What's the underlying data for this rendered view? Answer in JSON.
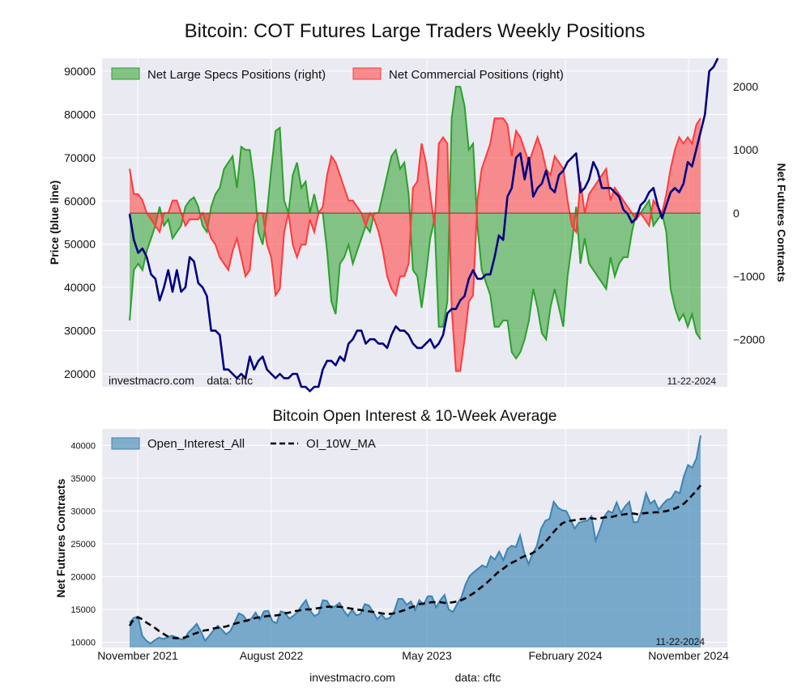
{
  "chart_data": [
    {
      "type": "area",
      "title": "Bitcoin: COT Futures Large Traders Weekly Positions",
      "ylabel_left": "Price (blue line)",
      "ylabel_right": "Net Futures Contracts",
      "ylim_left": [
        17000,
        93000
      ],
      "ylim_right": [
        -2750,
        2450
      ],
      "yticks_left": [
        "20000",
        "30000",
        "40000",
        "50000",
        "60000",
        "70000",
        "80000",
        "90000"
      ],
      "yticks_right": [
        "2000",
        "1000",
        "0",
        "−1000",
        "−2000"
      ],
      "legend": [
        "Net Large Specs Positions (right)",
        "Net Commercial Positions (right)"
      ],
      "legend_position": "top-left",
      "watermark": "investmacro.com    data: cftc",
      "date_label": "11-22-2024",
      "x_start": "2021-12-03",
      "x_end": "2024-11-22",
      "colors": {
        "specs": "#2ca02c",
        "commercial": "#ff3b3b",
        "price": "#000080"
      },
      "series": [
        {
          "name": "Net Large Specs Positions (right)",
          "values": [
            -1700,
            -900,
            -800,
            -900,
            -600,
            -400,
            -200,
            100,
            -200,
            -100,
            -400,
            -300,
            -200,
            100,
            200,
            250,
            100,
            -200,
            -300,
            100,
            300,
            400,
            700,
            800,
            900,
            400,
            1050,
            1000,
            1000,
            500,
            -300,
            -500,
            0,
            700,
            1300,
            1350,
            200,
            0,
            600,
            800,
            400,
            500,
            0,
            300,
            0,
            0,
            -600,
            -1400,
            -1600,
            -800,
            -700,
            -500,
            -800,
            -600,
            -400,
            -200,
            -300,
            0,
            0,
            300,
            600,
            900,
            1000,
            700,
            800,
            300,
            -900,
            -1000,
            -1500,
            -1000,
            -400,
            -100,
            -1800,
            -1800,
            -1400,
            1500,
            2000,
            2000,
            1700,
            1000,
            1100,
            -200,
            -900,
            -1100,
            -1300,
            -1800,
            -1800,
            -1700,
            -1700,
            -2200,
            -2300,
            -2200,
            -2000,
            -1700,
            -1200,
            -1500,
            -1900,
            -2000,
            -1500,
            -1200,
            -1500,
            -1800,
            -1000,
            -500,
            100,
            -800,
            -400,
            -800,
            -900,
            -1000,
            -1100,
            -1200,
            -700,
            -1000,
            -800,
            -700,
            -700,
            -300,
            0,
            0,
            100,
            200,
            -200,
            -100,
            0,
            -300,
            -1200,
            -1500,
            -1700,
            -1600,
            -1800,
            -1600,
            -1900,
            -2000
          ],
          "labels_hidden": true
        },
        {
          "name": "Net Commercial Positions (right)",
          "values": [
            700,
            300,
            300,
            200,
            0,
            -100,
            -200,
            -300,
            0,
            0,
            200,
            200,
            0,
            -200,
            -100,
            -100,
            -100,
            0,
            -200,
            -400,
            -500,
            -700,
            -800,
            -900,
            -600,
            -400,
            -700,
            -1000,
            -900,
            -200,
            0,
            0,
            -500,
            -700,
            -1300,
            -1200,
            -300,
            0,
            -500,
            -700,
            -500,
            -500,
            -100,
            -300,
            0,
            100,
            600,
            900,
            800,
            600,
            400,
            200,
            200,
            100,
            0,
            -200,
            0,
            -100,
            -300,
            -600,
            -1000,
            -1200,
            -1300,
            -1000,
            -1000,
            -800,
            400,
            500,
            1100,
            800,
            300,
            -200,
            1100,
            1200,
            1100,
            -1500,
            -2500,
            -2500,
            -2000,
            -1400,
            -1300,
            200,
            700,
            900,
            1100,
            1500,
            1500,
            1500,
            1400,
            900,
            1300,
            1200,
            1000,
            800,
            1000,
            1200,
            1000,
            700,
            600,
            900,
            800,
            700,
            200,
            -200,
            -300,
            500,
            0,
            300,
            400,
            500,
            600,
            700,
            200,
            400,
            300,
            200,
            100,
            0,
            -100,
            0,
            -100,
            -200,
            200,
            100,
            0,
            300,
            700,
            1000,
            1200,
            1100,
            1200,
            1100,
            1400,
            1500
          ],
          "labels_hidden": true
        },
        {
          "name": "price",
          "values": [
            57000,
            51000,
            48000,
            49000,
            47000,
            43000,
            42000,
            37000,
            40000,
            44000,
            39000,
            44000,
            39000,
            40000,
            47000,
            46000,
            41000,
            40000,
            38000,
            30000,
            30000,
            29000,
            21000,
            21000,
            20000,
            19000,
            20000,
            19000,
            24000,
            21000,
            23000,
            24000,
            21000,
            20000,
            19000,
            20000,
            19000,
            19000,
            20000,
            20000,
            17000,
            17000,
            16000,
            17000,
            17000,
            21000,
            23000,
            23000,
            22000,
            24000,
            23000,
            27000,
            28000,
            30000,
            30000,
            27000,
            28000,
            28000,
            27000,
            27000,
            26000,
            29000,
            31000,
            30000,
            30000,
            29000,
            27000,
            26000,
            26000,
            27000,
            28000,
            26000,
            27000,
            29000,
            34000,
            35000,
            35000,
            37000,
            38000,
            42000,
            44000,
            42000,
            42000,
            43000,
            43000,
            47000,
            52000,
            51000,
            61000,
            63000,
            70000,
            71000,
            65000,
            70000,
            61000,
            63000,
            64000,
            67000,
            63000,
            62000,
            66000,
            67000,
            69000,
            70000,
            71000,
            62000,
            63000,
            65000,
            69000,
            67000,
            63000,
            63000,
            63000,
            62000,
            61000,
            58000,
            57000,
            55000,
            56000,
            59000,
            60000,
            62000,
            63000,
            59000,
            56000,
            59000,
            62000,
            63000,
            62000,
            64000,
            69000,
            68000,
            72000,
            76000,
            80000,
            90000,
            91000,
            93000
          ]
        }
      ]
    },
    {
      "type": "area",
      "title": "Bitcoin Open Interest & 10-Week Average",
      "ylabel": "Net Futures Contracts",
      "ylim": [
        9200,
        42500
      ],
      "yticks": [
        "10000",
        "15000",
        "20000",
        "25000",
        "30000",
        "35000",
        "40000"
      ],
      "xticks": [
        "November 2021",
        "August 2022",
        "May 2023",
        "February 2024",
        "November 2024"
      ],
      "legend": [
        "Open_Interest_All",
        "OI_10W_MA"
      ],
      "legend_position": "top-left",
      "date_label": "11-22-2024",
      "colors": {
        "open_interest": "#3a84b4",
        "ma": "#000000"
      },
      "series": [
        {
          "name": "Open_Interest_All",
          "values": [
            13000,
            13700,
            13900,
            11000,
            10200,
            9800,
            10300,
            10700,
            10500,
            10700,
            11000,
            10800,
            10500,
            10400,
            11500,
            12100,
            12800,
            11600,
            10200,
            11000,
            11800,
            12500,
            11900,
            11200,
            11700,
            13000,
            14400,
            14100,
            13300,
            13600,
            14500,
            13400,
            14700,
            14800,
            13200,
            12900,
            14700,
            14500,
            13600,
            14000,
            14600,
            15600,
            16400,
            14800,
            14000,
            14300,
            16400,
            16300,
            15200,
            15500,
            16000,
            14800,
            14000,
            15000,
            14100,
            14300,
            15800,
            15600,
            14600,
            13500,
            14200,
            13500,
            13700,
            14700,
            16600,
            16600,
            15700,
            16200,
            14900,
            16400,
            15700,
            17000,
            17000,
            15300,
            16400,
            17200,
            15000,
            14600,
            15800,
            16800,
            18800,
            20100,
            20700,
            21200,
            21700,
            21400,
            23100,
            22600,
            23800,
            22500,
            24200,
            24700,
            24500,
            26300,
            23600,
            21900,
            23500,
            24700,
            27300,
            28500,
            28800,
            31400,
            30500,
            30100,
            30000,
            28700,
            27300,
            28200,
            28400,
            28500,
            29200,
            25500,
            27200,
            29100,
            30000,
            29700,
            31300,
            29700,
            30700,
            31400,
            28300,
            28300,
            30100,
            32700,
            31100,
            31600,
            30200,
            31000,
            31700,
            31900,
            33000,
            32700,
            35300,
            37000,
            36600,
            38000,
            41500
          ]
        },
        {
          "name": "OI_10W_MA",
          "values": [
            12500,
            13500,
            13800,
            13500,
            13000,
            12600,
            12200,
            11700,
            11300,
            10900,
            10700,
            10600,
            10600,
            10700,
            10900,
            11200,
            11400,
            11700,
            11800,
            11900,
            12100,
            12200,
            12300,
            12400,
            12600,
            12800,
            13000,
            13200,
            13300,
            13500,
            13700,
            13800,
            13900,
            14000,
            14000,
            14100,
            14200,
            14400,
            14500,
            14700,
            14800,
            14900,
            15000,
            15000,
            15100,
            15200,
            15300,
            15400,
            15400,
            15400,
            15400,
            15300,
            15200,
            15100,
            15000,
            14900,
            14800,
            14700,
            14600,
            14500,
            14400,
            14300,
            14300,
            14400,
            14600,
            14800,
            15000,
            15300,
            15500,
            15800,
            15900,
            16000,
            16100,
            16100,
            16100,
            16000,
            16000,
            16100,
            16200,
            16400,
            16700,
            17100,
            17500,
            18000,
            18500,
            19000,
            19600,
            20200,
            20800,
            21200,
            21700,
            22100,
            22400,
            22800,
            23100,
            23300,
            23600,
            24000,
            24600,
            25300,
            26000,
            26800,
            27500,
            28100,
            28400,
            28500,
            28600,
            28700,
            28800,
            28800,
            28900,
            28800,
            28900,
            29000,
            29100,
            29100,
            29300,
            29400,
            29500,
            29600,
            29600,
            29500,
            29600,
            29700,
            29700,
            29800,
            29800,
            29900,
            30000,
            30200,
            30400,
            30700,
            31100,
            31700,
            32400,
            33100,
            33900
          ]
        }
      ]
    }
  ],
  "footer": {
    "site": "investmacro.com",
    "data": "data: cftc"
  }
}
